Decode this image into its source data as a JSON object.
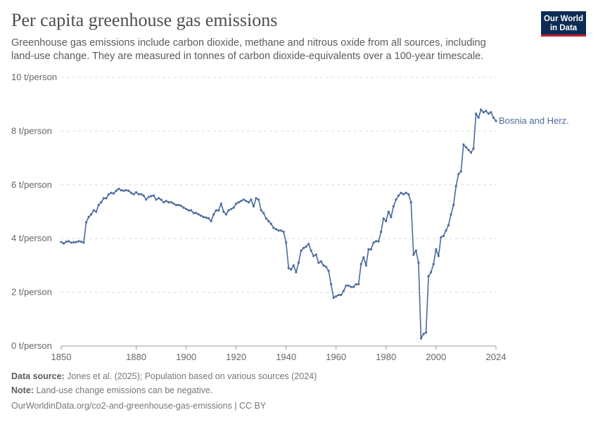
{
  "header": {
    "title": "Per capita greenhouse gas emissions",
    "subtitle": "Greenhouse gas emissions include carbon dioxide, methane and nitrous oxide from all sources, including land-use change. They are measured in tonnes of carbon dioxide-equivalents over a 100-year timescale."
  },
  "logo": {
    "line1": "Our World",
    "line2": "in Data"
  },
  "colors": {
    "series": "#4c6a9c",
    "grid": "#dddddd",
    "axis": "#666666",
    "logo_bg": "#0c2c53",
    "logo_accent": "#c8202f"
  },
  "footer": {
    "source_label": "Data source:",
    "source_text": "Jones et al. (2025); Population based on various sources (2024)",
    "note_label": "Note:",
    "note_text": "Land-use change emissions can be negative.",
    "url": "OurWorldinData.org/co2-and-greenhouse-gas-emissions | CC BY"
  },
  "chart_data": {
    "type": "line",
    "title": "Per capita greenhouse gas emissions",
    "xlabel": "",
    "ylabel": "",
    "xlim": [
      1850,
      2024
    ],
    "ylim": [
      0,
      10
    ],
    "grid": true,
    "y_ticks": [
      {
        "value": 0,
        "label": "0 t/person"
      },
      {
        "value": 2,
        "label": "2 t/person"
      },
      {
        "value": 4,
        "label": "4 t/person"
      },
      {
        "value": 6,
        "label": "6 t/person"
      },
      {
        "value": 8,
        "label": "8 t/person"
      },
      {
        "value": 10,
        "label": "10 t/person"
      }
    ],
    "x_ticks": [
      {
        "value": 1850,
        "label": "1850"
      },
      {
        "value": 1880,
        "label": "1880"
      },
      {
        "value": 1900,
        "label": "1900"
      },
      {
        "value": 1920,
        "label": "1920"
      },
      {
        "value": 1940,
        "label": "1940"
      },
      {
        "value": 1960,
        "label": "1960"
      },
      {
        "value": 1980,
        "label": "1980"
      },
      {
        "value": 2000,
        "label": "2000"
      },
      {
        "value": 2024,
        "label": "2024"
      }
    ],
    "series": [
      {
        "name": "Bosnia and Herz.",
        "x": [
          1850,
          1851,
          1852,
          1853,
          1854,
          1855,
          1856,
          1857,
          1858,
          1859,
          1860,
          1861,
          1862,
          1863,
          1864,
          1865,
          1866,
          1867,
          1868,
          1869,
          1870,
          1871,
          1872,
          1873,
          1874,
          1875,
          1876,
          1877,
          1878,
          1879,
          1880,
          1881,
          1882,
          1883,
          1884,
          1885,
          1886,
          1887,
          1888,
          1889,
          1890,
          1891,
          1892,
          1893,
          1894,
          1895,
          1896,
          1897,
          1898,
          1899,
          1900,
          1901,
          1902,
          1903,
          1904,
          1905,
          1906,
          1907,
          1908,
          1909,
          1910,
          1911,
          1912,
          1913,
          1914,
          1915,
          1916,
          1917,
          1918,
          1919,
          1920,
          1921,
          1922,
          1923,
          1924,
          1925,
          1926,
          1927,
          1928,
          1929,
          1930,
          1931,
          1932,
          1933,
          1934,
          1935,
          1936,
          1937,
          1938,
          1939,
          1940,
          1941,
          1942,
          1943,
          1944,
          1945,
          1946,
          1947,
          1948,
          1949,
          1950,
          1951,
          1952,
          1953,
          1954,
          1955,
          1956,
          1957,
          1958,
          1959,
          1960,
          1961,
          1962,
          1963,
          1964,
          1965,
          1966,
          1967,
          1968,
          1969,
          1970,
          1971,
          1972,
          1973,
          1974,
          1975,
          1976,
          1977,
          1978,
          1979,
          1980,
          1981,
          1982,
          1983,
          1984,
          1985,
          1986,
          1987,
          1988,
          1989,
          1990,
          1991,
          1992,
          1993,
          1994,
          1995,
          1996,
          1997,
          1998,
          1999,
          2000,
          2001,
          2002,
          2003,
          2004,
          2005,
          2006,
          2007,
          2008,
          2009,
          2010,
          2011,
          2012,
          2013,
          2014,
          2015,
          2016,
          2017,
          2018,
          2019,
          2020,
          2021,
          2022,
          2023,
          2024
        ],
        "values": [
          3.87,
          3.82,
          3.88,
          3.9,
          3.85,
          3.86,
          3.87,
          3.9,
          3.88,
          3.85,
          4.6,
          4.8,
          4.9,
          5.05,
          5.0,
          5.25,
          5.35,
          5.5,
          5.5,
          5.65,
          5.7,
          5.68,
          5.78,
          5.85,
          5.8,
          5.78,
          5.8,
          5.78,
          5.7,
          5.65,
          5.72,
          5.65,
          5.65,
          5.6,
          5.45,
          5.55,
          5.58,
          5.6,
          5.45,
          5.5,
          5.45,
          5.35,
          5.4,
          5.35,
          5.35,
          5.3,
          5.25,
          5.25,
          5.22,
          5.15,
          5.1,
          5.05,
          5.05,
          4.95,
          4.95,
          4.9,
          4.85,
          4.8,
          4.78,
          4.75,
          4.65,
          4.9,
          5.05,
          5.05,
          5.3,
          5.0,
          4.9,
          5.05,
          5.1,
          5.15,
          5.3,
          5.35,
          5.4,
          5.45,
          5.4,
          5.35,
          5.45,
          5.2,
          5.5,
          5.45,
          5.05,
          4.95,
          4.75,
          4.65,
          4.55,
          4.4,
          4.35,
          4.3,
          4.3,
          4.25,
          3.85,
          2.9,
          2.85,
          3.0,
          2.75,
          3.1,
          3.55,
          3.65,
          3.7,
          3.8,
          3.55,
          3.35,
          3.4,
          3.1,
          3.15,
          3.0,
          2.95,
          2.8,
          2.3,
          1.8,
          1.85,
          1.9,
          1.9,
          2.05,
          2.25,
          2.25,
          2.2,
          2.2,
          2.3,
          2.3,
          3.05,
          3.3,
          3.0,
          3.6,
          3.6,
          3.85,
          3.9,
          3.9,
          4.25,
          4.75,
          4.65,
          5.0,
          4.8,
          5.2,
          5.45,
          5.6,
          5.7,
          5.65,
          5.7,
          5.65,
          5.35,
          3.4,
          3.55,
          3.1,
          0.28,
          0.45,
          0.5,
          2.6,
          2.75,
          3.05,
          3.6,
          3.35,
          4.05,
          4.1,
          4.3,
          4.5,
          4.9,
          5.25,
          5.95,
          6.4,
          6.5,
          7.5,
          7.4,
          7.3,
          7.2,
          7.35,
          8.65,
          8.5,
          8.8,
          8.7,
          8.75,
          8.65,
          8.7,
          8.5,
          8.38
        ]
      }
    ]
  }
}
